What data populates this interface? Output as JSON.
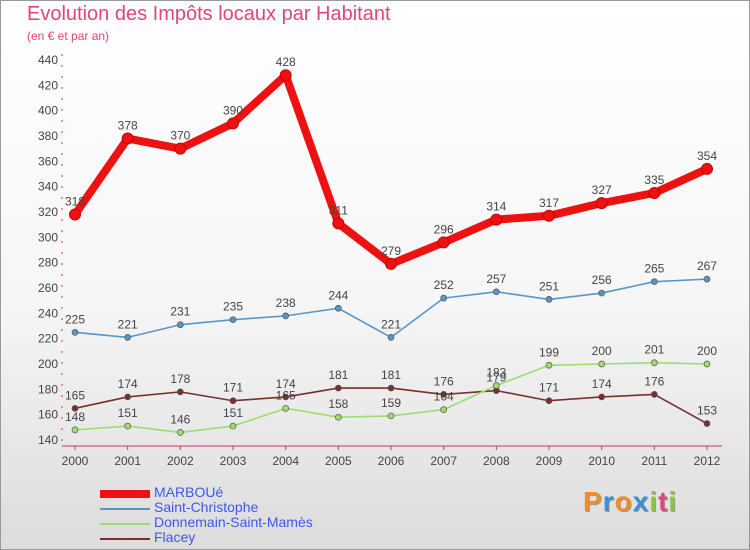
{
  "title": "Evolution des Impôts locaux par Habitant",
  "subtitle": "(en € et par an)",
  "brand": "Proxiti",
  "brand_colors": [
    "#f28c28",
    "#3a8fd6",
    "#f28c28",
    "#3a8fd6",
    "#8cc63f",
    "#e0457b",
    "#8cc63f"
  ],
  "chart_data": {
    "type": "line",
    "title": "Evolution des Impôts locaux par Habitant",
    "subtitle": "(en € et par an)",
    "x": [
      2000,
      2001,
      2002,
      2003,
      2004,
      2005,
      2006,
      2007,
      2008,
      2009,
      2010,
      2011,
      2012
    ],
    "ylim": [
      140,
      440
    ],
    "yticks": [
      140,
      160,
      180,
      200,
      220,
      240,
      260,
      280,
      300,
      320,
      340,
      360,
      380,
      400,
      420,
      440
    ],
    "grid": false,
    "legend_position": "bottom-left",
    "series": [
      {
        "name": "MARBOUé",
        "color": "#ee1111",
        "width": 8,
        "values": [
          318,
          378,
          370,
          390,
          428,
          311,
          279,
          296,
          314,
          317,
          327,
          335,
          354
        ]
      },
      {
        "name": "Saint-Christophe",
        "color": "#5a95c8",
        "width": 1.6,
        "values": [
          225,
          221,
          231,
          235,
          238,
          244,
          221,
          252,
          257,
          251,
          256,
          265,
          267
        ]
      },
      {
        "name": "Donnemain-Saint-Mamès",
        "color": "#9ddd6e",
        "width": 1.6,
        "values": [
          148,
          151,
          146,
          151,
          165,
          158,
          159,
          164,
          183,
          199,
          200,
          201,
          200
        ]
      },
      {
        "name": "Flacey",
        "color": "#7a2e2e",
        "width": 1.6,
        "values": [
          165,
          174,
          178,
          171,
          174,
          181,
          181,
          176,
          179,
          171,
          174,
          176,
          153
        ]
      }
    ]
  }
}
